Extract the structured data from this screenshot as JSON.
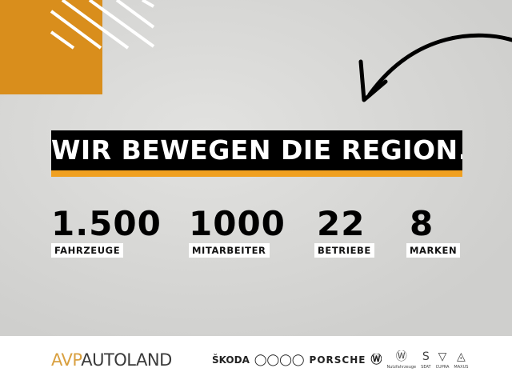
{
  "headline": "WIR BEWEGEN DIE REGION.",
  "stats": [
    {
      "value": "1.500",
      "label": "FAHRZEUGE"
    },
    {
      "value": "1000",
      "label": "MITARBEITER"
    },
    {
      "value": "22",
      "label": "BETRIEBE"
    },
    {
      "value": "8",
      "label": "MARKEN"
    }
  ],
  "logo": {
    "part1": "AVP",
    "part2": "AUTOLAND"
  },
  "brands": {
    "skoda": "ŠKODA",
    "porsche": "PORSCHE",
    "vw_nutz": "Nutzfahrzeuge",
    "seat": "SEAT",
    "cupra": "CUPRA",
    "maxus": "MAXUS"
  },
  "colors": {
    "accent": "#d98e1c",
    "bar": "#f0a020",
    "banner": "#000000"
  }
}
